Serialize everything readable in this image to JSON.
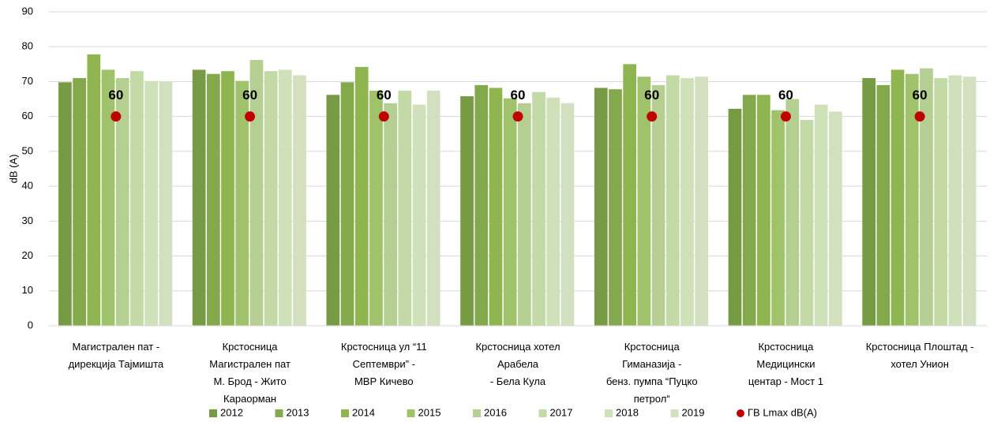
{
  "chart_data": {
    "type": "bar",
    "ylabel": "dB (A)",
    "categories": [
      "Магистрален пат -\nдирекција Тајмишта",
      "Крстосница\nМагистрален пат\nМ. Брод - Жито\nКараорман",
      "Крстосница ул “11\nСептември” -\nМВР Кичево",
      "Крстосница хотел\nАрабела\n- Бела Кула",
      "Крстосница\nГиманазија -\nбенз. пумпа “Пуцко\nпетрол“",
      "Крстосница\nМедицински\nцентар - Мост 1",
      "Крстосница Плоштад -\nхотел Унион"
    ],
    "series": [
      {
        "name": "2012",
        "color": "#779a45",
        "values": [
          69.8,
          73.4,
          66.2,
          65.8,
          68.2,
          62.2,
          71
        ]
      },
      {
        "name": "2013",
        "color": "#84a84c",
        "values": [
          71,
          72.2,
          69.8,
          69,
          67.8,
          66.2,
          69
        ]
      },
      {
        "name": "2014",
        "color": "#8fb550",
        "values": [
          77.8,
          73,
          74.2,
          68.2,
          75,
          66.2,
          73.4
        ]
      },
      {
        "name": "2015",
        "color": "#a0c26a",
        "values": [
          73.4,
          70.2,
          67.4,
          65.2,
          71.4,
          61.8,
          72.2
        ]
      },
      {
        "name": "2016",
        "color": "#b5cf93",
        "values": [
          71,
          76.2,
          63.8,
          63.8,
          69,
          65,
          73.8
        ]
      },
      {
        "name": "2017",
        "color": "#c3d9a6",
        "values": [
          73,
          73,
          67.4,
          67,
          71.8,
          59,
          71
        ]
      },
      {
        "name": "2018",
        "color": "#cfe1b8",
        "values": [
          70.2,
          73.4,
          63.4,
          65.4,
          71,
          63.4,
          71.8
        ]
      },
      {
        "name": "2019",
        "color": "#d3e0c0",
        "values": [
          70,
          71.8,
          67.4,
          63.8,
          71.4,
          61.4,
          71.4
        ]
      },
      {
        "name": "ГВ Lmax dB(A)",
        "type": "scatter",
        "color": "#c00000",
        "values": [
          60,
          60,
          60,
          60,
          60,
          60,
          60
        ]
      }
    ],
    "ylim": [
      0,
      90
    ],
    "yticks": [
      0,
      10,
      20,
      30,
      40,
      50,
      60,
      70,
      80,
      90
    ],
    "grid": true
  }
}
